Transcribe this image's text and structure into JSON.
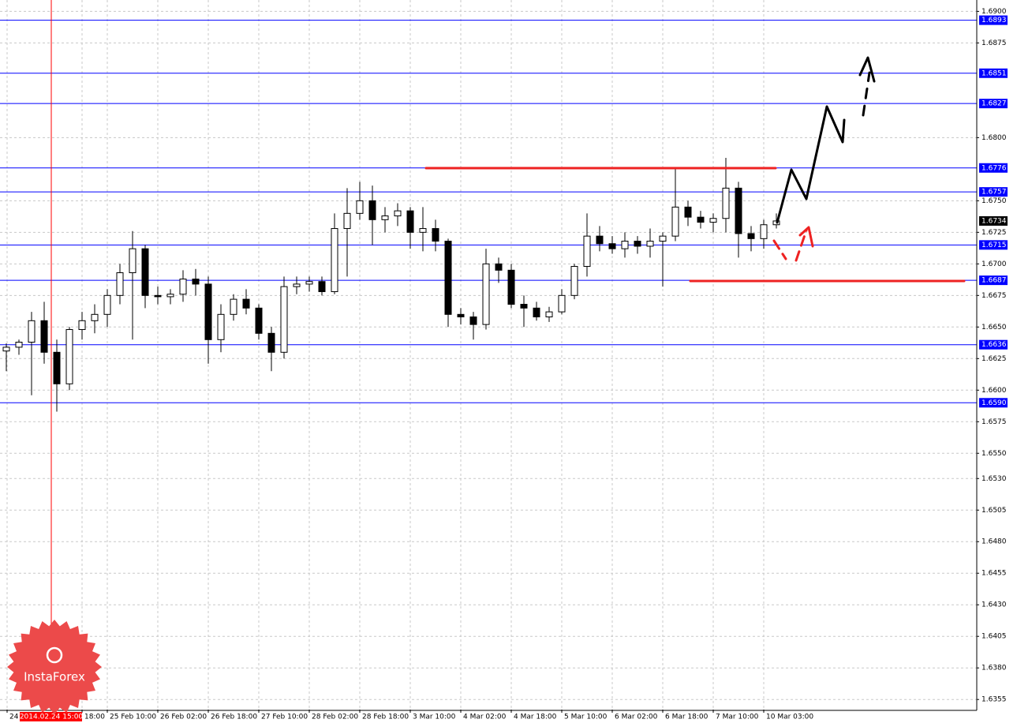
{
  "chart_data": {
    "type": "candlestick",
    "x": [
      2,
      6,
      10,
      14,
      18,
      22,
      26,
      30,
      34,
      38,
      42,
      46,
      50,
      54,
      58,
      62,
      66,
      70,
      74,
      78,
      82,
      86,
      90,
      94,
      98,
      102,
      106,
      110,
      114,
      118,
      122,
      126,
      130,
      134,
      138,
      142,
      146,
      150,
      154,
      158,
      162,
      166,
      170,
      174,
      178,
      182,
      186,
      190,
      194,
      198,
      202,
      206,
      210,
      214,
      218,
      222,
      226,
      230,
      234,
      238,
      242,
      246
    ],
    "ohlc": [
      [
        1.6631,
        1.6637,
        1.6615,
        1.6634
      ],
      [
        1.6634,
        1.664,
        1.6628,
        1.6638
      ],
      [
        1.6638,
        1.6662,
        1.6596,
        1.6655
      ],
      [
        1.6655,
        1.667,
        1.6621,
        1.663
      ],
      [
        1.663,
        1.664,
        1.6583,
        1.6605
      ],
      [
        1.6605,
        1.665,
        1.66,
        1.6648
      ],
      [
        1.6648,
        1.6662,
        1.664,
        1.6655
      ],
      [
        1.6655,
        1.6668,
        1.6645,
        1.666
      ],
      [
        1.666,
        1.668,
        1.665,
        1.6675
      ],
      [
        1.6675,
        1.67,
        1.6668,
        1.6693
      ],
      [
        1.6693,
        1.6726,
        1.664,
        1.6712
      ],
      [
        1.6712,
        1.6715,
        1.6665,
        1.6675
      ],
      [
        1.6675,
        1.6682,
        1.6668,
        1.6674
      ],
      [
        1.6674,
        1.668,
        1.6668,
        1.6676
      ],
      [
        1.6676,
        1.6695,
        1.667,
        1.6688
      ],
      [
        1.6688,
        1.6696,
        1.6675,
        1.6684
      ],
      [
        1.6684,
        1.669,
        1.6621,
        1.664
      ],
      [
        1.664,
        1.6668,
        1.663,
        1.666
      ],
      [
        1.666,
        1.6676,
        1.6655,
        1.6672
      ],
      [
        1.6672,
        1.668,
        1.666,
        1.6665
      ],
      [
        1.6665,
        1.6668,
        1.664,
        1.6645
      ],
      [
        1.6645,
        1.665,
        1.6615,
        1.663
      ],
      [
        1.663,
        1.669,
        1.6625,
        1.6682
      ],
      [
        1.6682,
        1.669,
        1.6676,
        1.6684
      ],
      [
        1.6684,
        1.669,
        1.6678,
        1.6686
      ],
      [
        1.6686,
        1.669,
        1.6675,
        1.6678
      ],
      [
        1.6678,
        1.674,
        1.6676,
        1.6728
      ],
      [
        1.6728,
        1.676,
        1.669,
        1.674
      ],
      [
        1.674,
        1.6765,
        1.6735,
        1.675
      ],
      [
        1.675,
        1.6762,
        1.6715,
        1.6735
      ],
      [
        1.6735,
        1.6745,
        1.6725,
        1.6738
      ],
      [
        1.6738,
        1.6748,
        1.673,
        1.6742
      ],
      [
        1.6742,
        1.6745,
        1.6712,
        1.6725
      ],
      [
        1.6725,
        1.6745,
        1.671,
        1.6728
      ],
      [
        1.6728,
        1.6735,
        1.671,
        1.6718
      ],
      [
        1.6718,
        1.672,
        1.665,
        1.666
      ],
      [
        1.666,
        1.6665,
        1.6652,
        1.6658
      ],
      [
        1.6658,
        1.6662,
        1.664,
        1.6652
      ],
      [
        1.6652,
        1.6712,
        1.6648,
        1.67
      ],
      [
        1.67,
        1.6705,
        1.6685,
        1.6695
      ],
      [
        1.6695,
        1.67,
        1.6665,
        1.6668
      ],
      [
        1.6668,
        1.6675,
        1.665,
        1.6665
      ],
      [
        1.6665,
        1.667,
        1.6655,
        1.6658
      ],
      [
        1.6658,
        1.6666,
        1.6654,
        1.6662
      ],
      [
        1.6662,
        1.668,
        1.666,
        1.6675
      ],
      [
        1.6675,
        1.67,
        1.6672,
        1.6698
      ],
      [
        1.6698,
        1.674,
        1.669,
        1.6722
      ],
      [
        1.6722,
        1.673,
        1.671,
        1.6716
      ],
      [
        1.6716,
        1.6722,
        1.6708,
        1.6712
      ],
      [
        1.6712,
        1.6725,
        1.6705,
        1.6718
      ],
      [
        1.6718,
        1.6722,
        1.6708,
        1.6714
      ],
      [
        1.6714,
        1.6728,
        1.6705,
        1.6718
      ],
      [
        1.6718,
        1.6725,
        1.6682,
        1.6722
      ],
      [
        1.6722,
        1.6776,
        1.6718,
        1.6745
      ],
      [
        1.6745,
        1.675,
        1.673,
        1.6737
      ],
      [
        1.6737,
        1.6742,
        1.6728,
        1.6733
      ],
      [
        1.6733,
        1.674,
        1.6725,
        1.6736
      ],
      [
        1.6736,
        1.6784,
        1.6725,
        1.676
      ],
      [
        1.676,
        1.6765,
        1.6705,
        1.6724
      ],
      [
        1.6724,
        1.673,
        1.671,
        1.672
      ],
      [
        1.672,
        1.6735,
        1.6712,
        1.6731
      ],
      [
        1.6731,
        1.674,
        1.6728,
        1.6734
      ]
    ],
    "color": "#000000",
    "xlim": [
      0,
      309.5
    ],
    "xticks": [
      {
        "value": 2.25,
        "label": "24"
      },
      {
        "value": 26,
        "label": "18:00"
      },
      {
        "value": 34,
        "label": "25 Feb 10:00"
      },
      {
        "value": 50,
        "label": "26 Feb 02:00"
      },
      {
        "value": 66,
        "label": "26 Feb 18:00"
      },
      {
        "value": 82,
        "label": "27 Feb 10:00"
      },
      {
        "value": 98,
        "label": "28 Feb 02:00"
      },
      {
        "value": 114,
        "label": "28 Feb 18:00"
      },
      {
        "value": 130,
        "label": "3 Mar 10:00"
      },
      {
        "value": 146,
        "label": "4 Mar 02:00"
      },
      {
        "value": 162,
        "label": "4 Mar 18:00"
      },
      {
        "value": 178,
        "label": "5 Mar 10:00"
      },
      {
        "value": 194,
        "label": "6 Mar 02:00"
      },
      {
        "value": 210,
        "label": "6 Mar 18:00"
      },
      {
        "value": 226,
        "label": "7 Mar 10:00"
      },
      {
        "value": 242,
        "label": "10 Mar 03:00"
      }
    ],
    "ylim": [
      1.6347,
      1.6909
    ],
    "yticks": [
      {
        "value": 1.69,
        "label": "1.6900"
      },
      1.6875,
      {
        "value": 1.68,
        "label": "1.6800"
      },
      {
        "value": 1.675,
        "label": "1.6750"
      },
      1.6725,
      {
        "value": 1.67,
        "label": "1.6700"
      },
      1.6675,
      {
        "value": 1.665,
        "label": "1.6650"
      },
      1.6625,
      {
        "value": 1.66,
        "label": "1.6600"
      },
      1.6575,
      {
        "value": 1.655,
        "label": "1.6550"
      },
      {
        "value": 1.653,
        "label": "1.6530"
      },
      1.6505,
      {
        "value": 1.648,
        "label": "1.6480"
      },
      1.6455,
      {
        "value": 1.643,
        "label": "1.6430"
      },
      1.6405,
      {
        "value": 1.638,
        "label": "1.6380"
      },
      1.6355
    ],
    "grid": true,
    "levels": [
      1.6893,
      1.6851,
      1.6827,
      1.6776,
      1.6757,
      1.6715,
      1.6687,
      1.6636,
      {
        "value": 1.659,
        "label": "1.6590"
      }
    ],
    "level_color": "#0000ff",
    "last_price": 1.6734,
    "crosshair": {
      "value": 16.25,
      "label": "2014.02.24 15:00",
      "color": "#ff0000"
    }
  },
  "watermark": "InstaForex"
}
